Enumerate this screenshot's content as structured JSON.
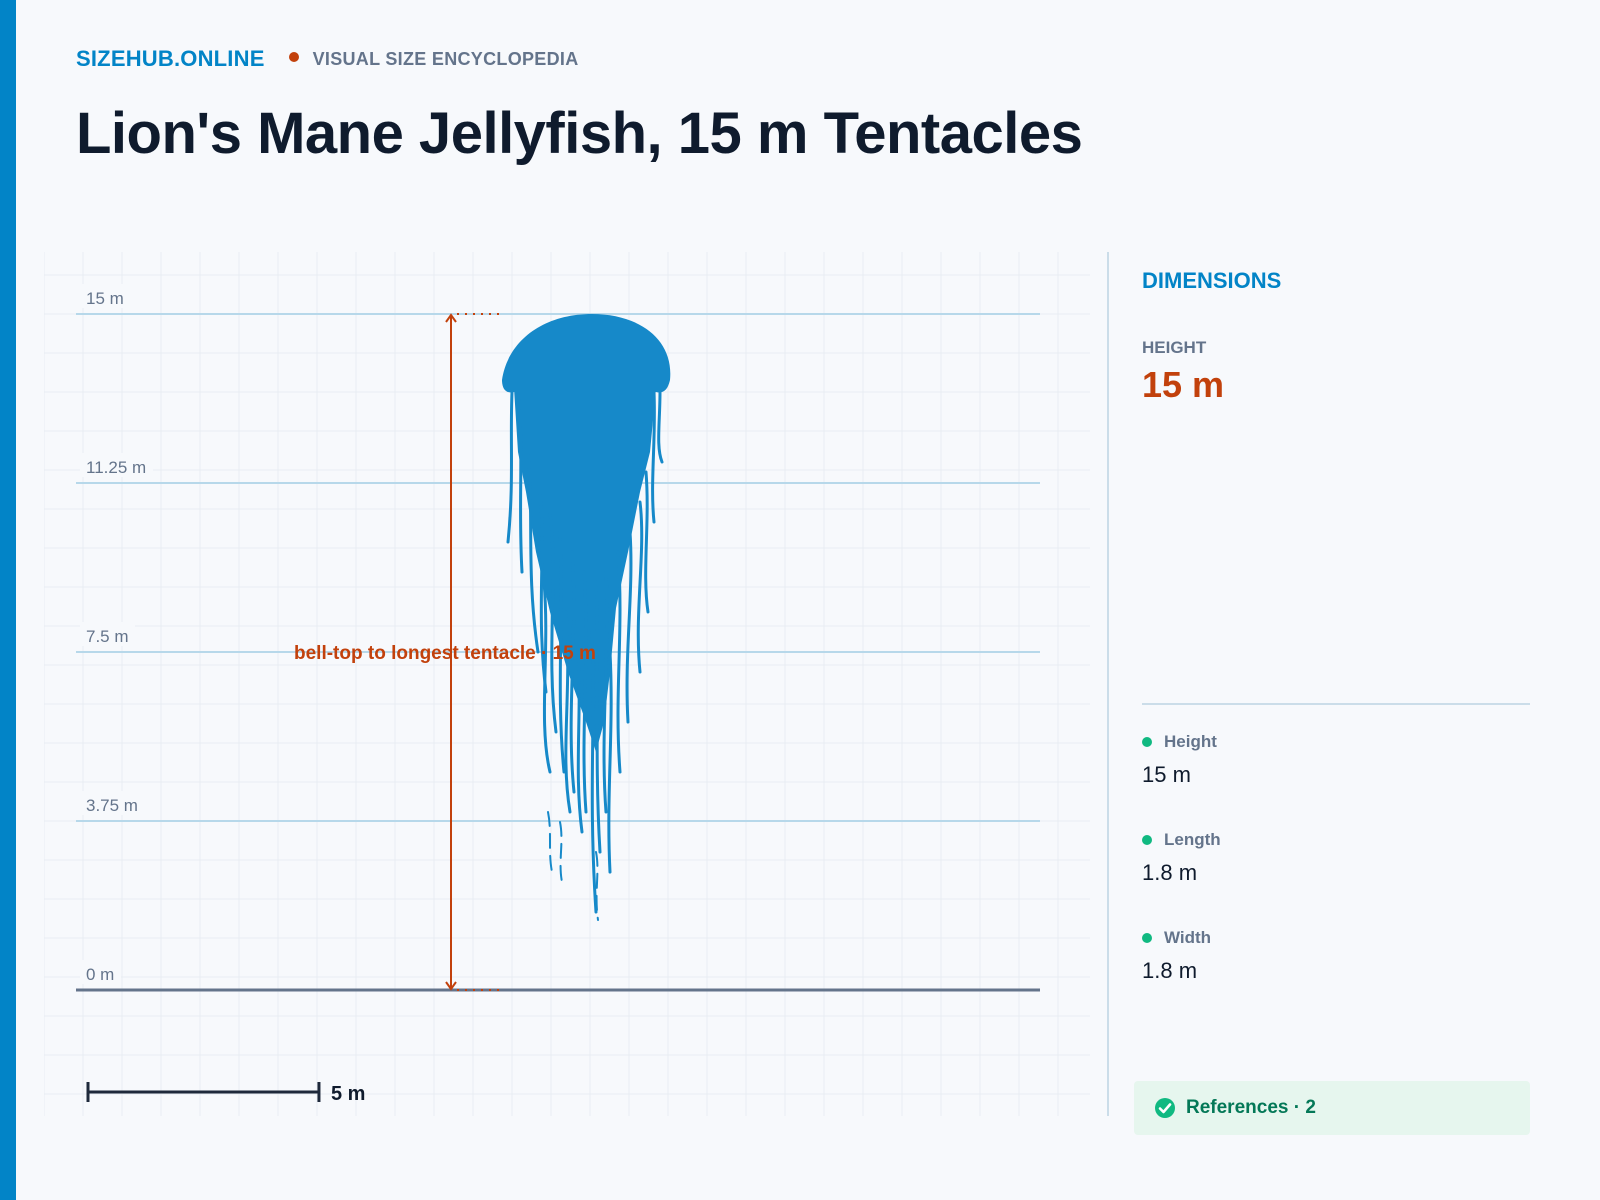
{
  "brand": {
    "name": "SIZEHUB.ONLINE",
    "tagline": "VISUAL SIZE ENCYCLOPEDIA"
  },
  "page": {
    "title": "Lion's Mane Jellyfish, 15 m Tentacles"
  },
  "chart_data": {
    "type": "scale-diagram",
    "unit": "m",
    "y_ticks": [
      {
        "value": 15,
        "label": "15 m"
      },
      {
        "value": 11.25,
        "label": "11.25 m"
      },
      {
        "value": 7.5,
        "label": "7.5 m"
      },
      {
        "value": 3.75,
        "label": "3.75 m"
      },
      {
        "value": 0,
        "label": "0 m"
      }
    ],
    "ylim": [
      0,
      15
    ],
    "grid": true,
    "subject": {
      "name": "lion's mane jellyfish silhouette",
      "height_m": 15,
      "color": "#1689c9"
    },
    "measurement": {
      "label": "bell-top to longest tentacle · 15 m",
      "from": 0,
      "to": 15,
      "color": "#c2410c"
    },
    "scale_bar": {
      "value_m": 5,
      "label": "5 m"
    }
  },
  "panel": {
    "title": "DIMENSIONS",
    "hero": {
      "label": "HEIGHT",
      "value": "15 m"
    },
    "specs": [
      {
        "label": "Height",
        "value": "15 m"
      },
      {
        "label": "Length",
        "value": "1.8 m"
      },
      {
        "label": "Width",
        "value": "1.8 m"
      }
    ],
    "references_label": "References · 2"
  },
  "colors": {
    "brand": "#0284c7",
    "accent": "#c2410c",
    "subject": "#1689c9",
    "status": "#10b981"
  }
}
